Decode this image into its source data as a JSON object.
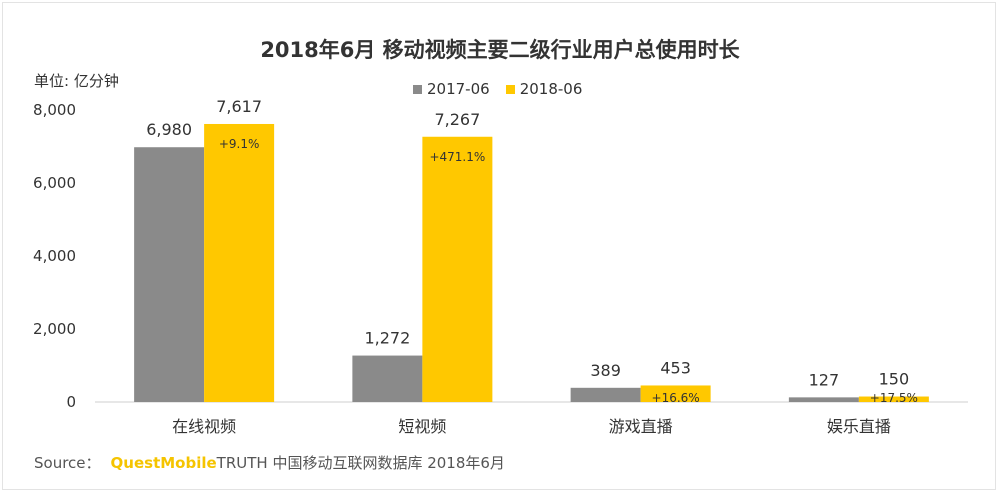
{
  "title": "2018年6月 移动视频主要二级行业用户总使用时长",
  "unit_label": "单位: 亿分钟",
  "legend": [
    {
      "name": "2017-06",
      "color": "#8a8a8a"
    },
    {
      "name": "2018-06",
      "color": "#ffc800"
    }
  ],
  "source": {
    "prefix": "Source：",
    "brand": "QuestMobile",
    "suffix": "TRUTH 中国移动互联网数据库 2018年6月"
  },
  "chart_data": {
    "type": "bar",
    "categories": [
      "在线视频",
      "短视频",
      "游戏直播",
      "娱乐直播"
    ],
    "series": [
      {
        "name": "2017-06",
        "values": [
          6980,
          1272,
          389,
          127
        ],
        "labels": [
          "6,980",
          "1,272",
          "389",
          "127"
        ]
      },
      {
        "name": "2018-06",
        "values": [
          7617,
          7267,
          453,
          150
        ],
        "labels": [
          "7,617",
          "7,267",
          "453",
          "150"
        ]
      }
    ],
    "growth_labels": [
      "+9.1%",
      "+471.1%",
      "+16.6%",
      "+17.5%"
    ],
    "yticks": [
      0,
      2000,
      4000,
      6000,
      8000
    ],
    "ytick_labels": [
      "0",
      "2,000",
      "4,000",
      "6,000",
      "8,000"
    ],
    "ylim": [
      0,
      8000
    ],
    "grid": false,
    "legend_position": "top-center"
  }
}
